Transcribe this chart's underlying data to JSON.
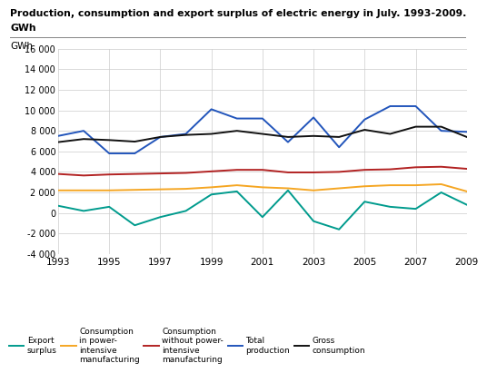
{
  "title_line1": "Production, consumption and export surplus of electric energy in July. 1993-2009.",
  "title_line2": "GWh",
  "ylabel": "GWh",
  "years": [
    1993,
    1994,
    1995,
    1996,
    1997,
    1998,
    1999,
    2000,
    2001,
    2002,
    2003,
    2004,
    2005,
    2006,
    2007,
    2008,
    2009
  ],
  "export_surplus": [
    700,
    200,
    600,
    -1200,
    -400,
    200,
    1800,
    2100,
    -400,
    2200,
    -800,
    -1600,
    1100,
    600,
    400,
    2000,
    800
  ],
  "consumption_power": [
    2200,
    2200,
    2200,
    2250,
    2300,
    2350,
    2500,
    2700,
    2500,
    2400,
    2200,
    2400,
    2600,
    2700,
    2700,
    2800,
    2100
  ],
  "consumption_no_power": [
    3800,
    3650,
    3750,
    3800,
    3850,
    3900,
    4050,
    4200,
    4200,
    3950,
    3950,
    4000,
    4200,
    4250,
    4450,
    4500,
    4300
  ],
  "total_production": [
    7500,
    8000,
    5800,
    5800,
    7400,
    7700,
    10100,
    9200,
    9200,
    6900,
    9300,
    6400,
    9100,
    10400,
    10400,
    8000,
    7900
  ],
  "gross_consumption": [
    6900,
    7200,
    7100,
    6950,
    7400,
    7600,
    7700,
    8000,
    7700,
    7400,
    7500,
    7400,
    8100,
    7700,
    8400,
    8400,
    7400
  ],
  "color_export": "#009B8D",
  "color_power": "#F5A623",
  "color_no_power": "#B22222",
  "color_total": "#2255BB",
  "color_gross": "#111111",
  "ylim": [
    -4000,
    16000
  ],
  "ytick_values": [
    -4000,
    -2000,
    0,
    2000,
    4000,
    6000,
    8000,
    10000,
    12000,
    14000,
    16000
  ],
  "ytick_labels": [
    "-4 000",
    "-2 000",
    "0",
    "2 000",
    "4 000",
    "6 000",
    "8 000",
    "10 000",
    "12 000",
    "14 000",
    "16 000"
  ],
  "xticks": [
    1993,
    1995,
    1997,
    1999,
    2001,
    2003,
    2005,
    2007,
    2009
  ]
}
